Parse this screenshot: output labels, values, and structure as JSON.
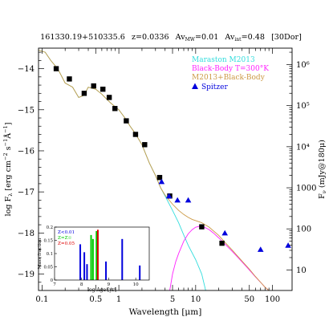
{
  "chart_data": {
    "type": "line",
    "title": "161330.19+510335.6 z=0.0336 Av_MW=0.01 Av_int=0.48 [30Dor]",
    "title_parts": {
      "name": "161330.19+510335.6",
      "z": "z=0.0336",
      "av_mw_prefix": "Av",
      "av_mw_sub": "MW",
      "av_mw_value": "=0.01",
      "av_int_prefix": "Av",
      "av_int_sub": "int",
      "av_int_value": "=0.48",
      "template": "[30Dor]"
    },
    "xlabel": "Wavelength [μm]",
    "ylabel": "log F_λ [erg cm⁻² s⁻¹Å⁻¹]",
    "ylabel_parts": {
      "lead": "log F",
      "sub": "λ",
      "units_open": " [erg cm",
      "sup1": "−2",
      "mid": " s",
      "sup2": "−1",
      "ang": "Å",
      "sup3": "−1",
      "close": "]"
    },
    "ylabel_right": "F_ν (mJy@180μ)",
    "ylabel_right_parts": {
      "lead": "F",
      "sub": "ν",
      "rest": " (mJy@180μ)"
    },
    "xscale": "log",
    "xlim": [
      0.09,
      180
    ],
    "ylim": [
      -19.4,
      -13.5
    ],
    "xticks": [
      0.1,
      0.5,
      1,
      5,
      10,
      50,
      100
    ],
    "xtick_labels": [
      "0.1",
      "0.5",
      "1",
      "5",
      "10",
      "50",
      "100"
    ],
    "yticks": [
      -19,
      -18,
      -17,
      -16,
      -15,
      -14
    ],
    "ytick_labels": [
      "−19",
      "−18",
      "−17",
      "−16",
      "−15",
      "−14"
    ],
    "right_axis": {
      "scale": "log",
      "ticks": [
        10,
        100,
        1000,
        10000,
        100000,
        1000000
      ],
      "tick_labels": [
        "10",
        "100",
        "1000",
        "10⁴",
        "10⁵",
        "10⁶"
      ],
      "tick_y_data": [
        -18.9,
        -17.9,
        -16.9,
        -15.9,
        -14.9,
        -13.9
      ]
    },
    "series": [
      {
        "name": "Maraston M2013",
        "kind": "line",
        "color": "#33dddd",
        "x": [
          0.09,
          0.11,
          0.13,
          0.16,
          0.2,
          0.25,
          0.3,
          0.35,
          0.4,
          0.5,
          0.6,
          0.7,
          0.8,
          0.9,
          1.0,
          1.2,
          1.4,
          1.6,
          2.0,
          2.5,
          3.0,
          3.5,
          4.0,
          5.0,
          6.0,
          7.0,
          8.0,
          10.0,
          12.0,
          13.5
        ],
        "y": [
          -13.55,
          -13.6,
          -13.8,
          -14.0,
          -14.35,
          -14.45,
          -14.7,
          -14.65,
          -14.45,
          -14.5,
          -14.62,
          -14.75,
          -14.85,
          -14.93,
          -15.0,
          -15.2,
          -15.4,
          -15.55,
          -15.85,
          -16.3,
          -16.6,
          -16.9,
          -17.1,
          -17.45,
          -17.75,
          -18.05,
          -18.3,
          -18.65,
          -19.0,
          -19.4
        ]
      },
      {
        "name": "Black-Body T=300°K",
        "kind": "line",
        "color": "#ff22ff",
        "x": [
          4.6,
          5.0,
          5.5,
          6.0,
          7.0,
          8.0,
          9.0,
          10.0,
          11.0,
          12.0,
          13.0,
          15.0,
          17.0,
          20.0,
          25.0,
          30.0,
          40.0,
          50.0,
          60.0,
          70.0,
          80.0,
          90.0
        ],
        "y": [
          -19.4,
          -19.0,
          -18.7,
          -18.5,
          -18.2,
          -18.02,
          -17.92,
          -17.86,
          -17.84,
          -17.84,
          -17.86,
          -17.92,
          -18.0,
          -18.12,
          -18.3,
          -18.45,
          -18.7,
          -18.9,
          -19.07,
          -19.2,
          -19.32,
          -19.4
        ]
      },
      {
        "name": "M2013+Black-Body",
        "kind": "line",
        "color": "#cc9944",
        "x": [
          0.09,
          0.11,
          0.13,
          0.16,
          0.2,
          0.25,
          0.3,
          0.35,
          0.4,
          0.5,
          0.6,
          0.7,
          0.8,
          0.9,
          1.0,
          1.2,
          1.4,
          1.6,
          2.0,
          2.5,
          3.0,
          3.5,
          4.0,
          5.0,
          6.0,
          7.0,
          8.0,
          9.0,
          10.0,
          12.0,
          15.0,
          20.0,
          25.0,
          30.0,
          40.0,
          50.0,
          60.0,
          70.0,
          80.0,
          90.0
        ],
        "y": [
          -13.55,
          -13.6,
          -13.8,
          -14.0,
          -14.35,
          -14.45,
          -14.7,
          -14.65,
          -14.45,
          -14.5,
          -14.62,
          -14.75,
          -14.85,
          -14.93,
          -15.0,
          -15.2,
          -15.4,
          -15.55,
          -15.85,
          -16.3,
          -16.6,
          -16.9,
          -17.08,
          -17.3,
          -17.45,
          -17.55,
          -17.62,
          -17.67,
          -17.7,
          -17.75,
          -17.86,
          -18.06,
          -18.26,
          -18.42,
          -18.68,
          -18.88,
          -19.06,
          -19.2,
          -19.32,
          -19.4
        ]
      },
      {
        "name": "photometry",
        "kind": "scatter",
        "marker": "square",
        "color": "#000000",
        "x": [
          0.153,
          0.227,
          0.354,
          0.47,
          0.62,
          0.75,
          0.89,
          1.25,
          1.65,
          2.17,
          3.4,
          4.6,
          12.0,
          22.0
        ],
        "y": [
          -14.0,
          -14.25,
          -14.6,
          -14.42,
          -14.5,
          -14.7,
          -14.97,
          -15.27,
          -15.6,
          -15.85,
          -16.65,
          -17.1,
          -17.85,
          -18.25
        ]
      },
      {
        "name": "Spitzer",
        "kind": "scatter",
        "marker": "triangle",
        "color": "#0000dd",
        "x": [
          3.6,
          4.5,
          5.8,
          8.0,
          24.0,
          70.0,
          160.0
        ],
        "y": [
          -16.75,
          -17.1,
          -17.2,
          -17.2,
          -18.0,
          -18.4,
          -18.3
        ]
      }
    ],
    "legend": {
      "placement": "top-right",
      "entries": [
        {
          "label": "Maraston M2013",
          "color": "#33dddd"
        },
        {
          "label": "Black-Body T=300°K",
          "color": "#ff22ff"
        },
        {
          "label": "M2013+Black-Body",
          "color": "#cc9944"
        },
        {
          "label": "Spitzer",
          "color": "#0000dd",
          "marker": "triangle"
        }
      ]
    },
    "inset": {
      "type": "bar",
      "xlabel": "log Age [yr]",
      "ylabel": "Mass fraction",
      "xlim": [
        7,
        10.5
      ],
      "ylim": [
        0,
        0.2
      ],
      "xticks": [
        7,
        8,
        9,
        10
      ],
      "xtick_labels": [
        "7",
        "8",
        "9",
        "10"
      ],
      "yticks": [
        0,
        0.05,
        0.1,
        0.15,
        0.2
      ],
      "ytick_labels": [
        "0",
        "0.05",
        "0.1",
        "0.15",
        "0.2"
      ],
      "legend": [
        {
          "label": "Z<0.01",
          "color": "#0000dd"
        },
        {
          "label": "Z=Z☉",
          "color": "#00cc00"
        },
        {
          "label": "Z=0.05",
          "color": "#dd0000"
        }
      ],
      "bars": [
        {
          "x": 7.95,
          "value": 0.135,
          "color": "#0000dd"
        },
        {
          "x": 8.1,
          "value": 0.105,
          "color": "#0000dd"
        },
        {
          "x": 8.2,
          "value": 0.06,
          "color": "#0000dd"
        },
        {
          "x": 8.35,
          "value": 0.17,
          "color": "#00cc00"
        },
        {
          "x": 8.42,
          "value": 0.155,
          "color": "#00cc00"
        },
        {
          "x": 8.55,
          "value": 0.185,
          "color": "#00cc00"
        },
        {
          "x": 8.6,
          "value": 0.19,
          "color": "#dd0000"
        },
        {
          "x": 8.9,
          "value": 0.07,
          "color": "#0000dd"
        },
        {
          "x": 9.5,
          "value": 0.155,
          "color": "#0000dd"
        },
        {
          "x": 10.15,
          "value": 0.055,
          "color": "#0000dd"
        }
      ]
    }
  }
}
